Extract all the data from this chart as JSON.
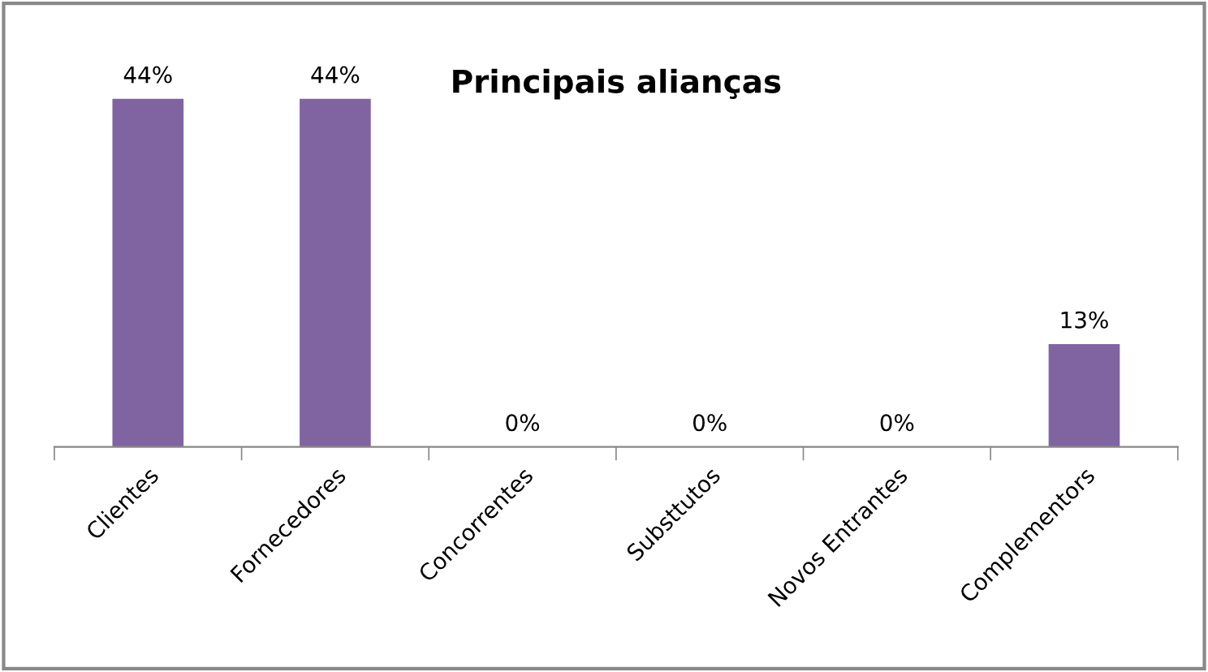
{
  "chart_data": {
    "type": "bar",
    "title": "Principais alianças",
    "categories": [
      "Clientes",
      "Fornecedores",
      "Concorrentes",
      "Substtutos",
      "Novos Entrantes",
      "Complementors"
    ],
    "values": [
      44,
      44,
      0,
      0,
      0,
      13
    ],
    "value_labels": [
      "44%",
      "44%",
      "0%",
      "0%",
      "0%",
      "13%"
    ],
    "color": "#8064a2",
    "grid": false,
    "legend": false
  }
}
